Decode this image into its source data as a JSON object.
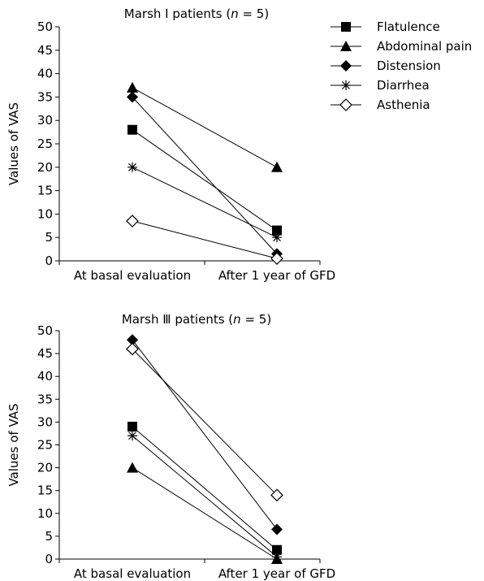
{
  "chart_data": [
    {
      "type": "line",
      "title": "Marsh Ⅰ patients (n = 5)",
      "title_parts": {
        "prefix": "Marsh Ⅰ patients (",
        "italic": "n",
        "suffix": " = 5)"
      },
      "xlabel": "",
      "ylabel": "Values of VAS",
      "ylim": [
        0,
        50
      ],
      "yticks": [
        "0",
        "5",
        "10",
        "15",
        "20",
        "25",
        "30",
        "35",
        "40",
        "45",
        "50"
      ],
      "categories": [
        "At basal evaluation",
        "After 1 year of GFD"
      ],
      "series": [
        {
          "name": "Flatulence",
          "marker": "square-filled",
          "values": [
            28,
            6.5
          ]
        },
        {
          "name": "Abdominal pain",
          "marker": "triangle-filled",
          "values": [
            37,
            20
          ]
        },
        {
          "name": "Distension",
          "marker": "diamond-filled",
          "values": [
            35,
            1.5
          ]
        },
        {
          "name": "Diarrhea",
          "marker": "star",
          "values": [
            20,
            5
          ]
        },
        {
          "name": "Asthenia",
          "marker": "diamond-open",
          "values": [
            8.5,
            0.5
          ]
        }
      ],
      "legend": "top-right",
      "grid": false
    },
    {
      "type": "line",
      "title": "Marsh Ⅲ patients (n = 5)",
      "title_parts": {
        "prefix": "Marsh Ⅲ patients (",
        "italic": "n",
        "suffix": " = 5)"
      },
      "xlabel": "",
      "ylabel": "Values of VAS",
      "ylim": [
        0,
        50
      ],
      "yticks": [
        "0",
        "5",
        "10",
        "15",
        "20",
        "25",
        "30",
        "35",
        "40",
        "45",
        "50"
      ],
      "categories": [
        "At basal evaluation",
        "After 1 year of GFD"
      ],
      "series": [
        {
          "name": "Flatulence",
          "marker": "square-filled",
          "values": [
            29,
            2
          ]
        },
        {
          "name": "Abdominal pain",
          "marker": "triangle-filled",
          "values": [
            20,
            0
          ]
        },
        {
          "name": "Distension",
          "marker": "diamond-filled",
          "values": [
            48,
            6.5
          ]
        },
        {
          "name": "Diarrhea",
          "marker": "star",
          "values": [
            27,
            0.5
          ]
        },
        {
          "name": "Asthenia",
          "marker": "diamond-open",
          "values": [
            46,
            14
          ]
        }
      ],
      "grid": false
    }
  ]
}
